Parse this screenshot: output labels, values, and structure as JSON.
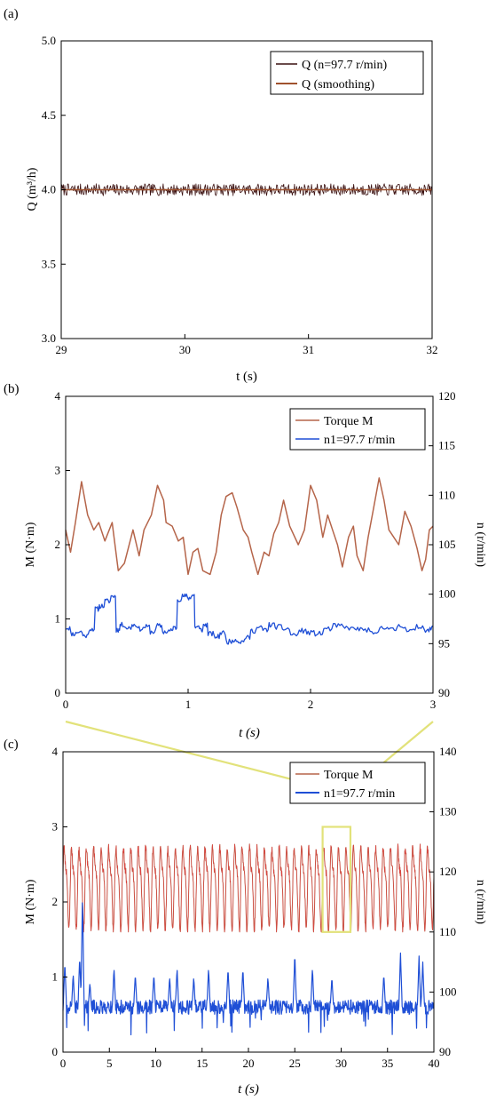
{
  "panels": {
    "a": {
      "label": "(a)"
    },
    "b": {
      "label": "(b)"
    },
    "c": {
      "label": "(c)"
    }
  },
  "chart_data": [
    {
      "id": "a",
      "type": "line",
      "xlabel": "t (s)",
      "ylabel": "Q (m³/h)",
      "xlim": [
        29,
        32
      ],
      "ylim": [
        3.0,
        5.0
      ],
      "xticks": [
        29,
        30,
        31,
        32
      ],
      "yticks": [
        3.0,
        3.5,
        4.0,
        4.5,
        5.0
      ],
      "grid": false,
      "legend_position": "top-right",
      "series": [
        {
          "name": "Q (n=97.7 r/min)",
          "color": "#3a1010",
          "mean": 4.0,
          "fluctuation": 0.04,
          "x": [
            29.0,
            29.5,
            30.0,
            30.5,
            31.0,
            31.5,
            32.0
          ],
          "values": [
            4.0,
            4.0,
            4.0,
            4.0,
            4.0,
            4.0,
            4.0
          ]
        },
        {
          "name": "Q (smoothing)",
          "color": "#a0522d",
          "x": [
            29.0,
            29.5,
            30.0,
            30.5,
            31.0,
            31.5,
            32.0
          ],
          "values": [
            4.0,
            4.0,
            4.0,
            4.0,
            4.0,
            4.0,
            4.0
          ]
        }
      ]
    },
    {
      "id": "b",
      "type": "line",
      "xlabel": "t (s)",
      "ylabel": "M (N·m)",
      "y2label": "n (r/min)",
      "xlim": [
        0,
        3
      ],
      "ylim": [
        0,
        4
      ],
      "y2lim": [
        90,
        120
      ],
      "xticks": [
        0,
        1,
        2,
        3
      ],
      "yticks": [
        0,
        1,
        2,
        3,
        4
      ],
      "y2ticks": [
        90,
        95,
        100,
        105,
        110,
        115,
        120
      ],
      "grid": false,
      "legend_position": "top-right",
      "series": [
        {
          "name": "Torque M",
          "color": "#b5654a",
          "axis": "left",
          "x": [
            0,
            0.04,
            0.08,
            0.13,
            0.18,
            0.23,
            0.27,
            0.32,
            0.38,
            0.43,
            0.48,
            0.55,
            0.6,
            0.64,
            0.7,
            0.75,
            0.8,
            0.82,
            0.87,
            0.92,
            0.96,
            1.0,
            1.04,
            1.08,
            1.12,
            1.18,
            1.23,
            1.27,
            1.31,
            1.36,
            1.4,
            1.45,
            1.49,
            1.52,
            1.57,
            1.62,
            1.66,
            1.7,
            1.74,
            1.78,
            1.83,
            1.9,
            1.95,
            2.0,
            2.05,
            2.1,
            2.14,
            2.18,
            2.22,
            2.26,
            2.31,
            2.35,
            2.38,
            2.43,
            2.47,
            2.51,
            2.56,
            2.6,
            2.64,
            2.68,
            2.72,
            2.77,
            2.82,
            2.87,
            2.91,
            2.94,
            2.97,
            3.0
          ],
          "values": [
            2.2,
            1.9,
            2.3,
            2.85,
            2.4,
            2.2,
            2.3,
            2.05,
            2.3,
            1.65,
            1.75,
            2.2,
            1.85,
            2.2,
            2.4,
            2.8,
            2.6,
            2.3,
            2.25,
            2.05,
            2.1,
            1.6,
            1.9,
            1.95,
            1.65,
            1.6,
            1.9,
            2.4,
            2.65,
            2.7,
            2.5,
            2.2,
            2.1,
            1.9,
            1.6,
            1.9,
            1.85,
            2.15,
            2.3,
            2.6,
            2.25,
            2.0,
            2.2,
            2.8,
            2.6,
            2.1,
            2.4,
            2.2,
            2.0,
            1.7,
            2.1,
            2.25,
            1.85,
            1.65,
            2.1,
            2.45,
            2.9,
            2.6,
            2.2,
            2.1,
            2.0,
            2.45,
            2.25,
            1.95,
            1.65,
            1.8,
            2.2,
            2.25
          ]
        },
        {
          "name": "n1=97.7 r/min",
          "color": "#1f4fd6",
          "axis": "right",
          "x": [
            0,
            0.05,
            0.1,
            0.15,
            0.2,
            0.25,
            0.28,
            0.33,
            0.38,
            0.42,
            0.45,
            0.5,
            0.55,
            0.6,
            0.65,
            0.7,
            0.75,
            0.8,
            0.85,
            0.88,
            0.92,
            0.96,
            1.0,
            1.03,
            1.06,
            1.1,
            1.13,
            1.17,
            1.22,
            1.27,
            1.32,
            1.37,
            1.42,
            1.47,
            1.52,
            1.57,
            1.62,
            1.67,
            1.72,
            1.78,
            1.85,
            1.92,
            1.98,
            2.05,
            2.12,
            2.2,
            2.28,
            2.35,
            2.42,
            2.5,
            2.58,
            2.65,
            2.72,
            2.8,
            2.88,
            2.95,
            3.0
          ],
          "values": [
            96.6,
            96.0,
            96.2,
            95.8,
            96.5,
            98.5,
            98.8,
            99.3,
            99.8,
            96.4,
            96.9,
            96.6,
            96.9,
            96.5,
            96.7,
            96.2,
            96.8,
            96.2,
            96.3,
            96.6,
            99.5,
            99.8,
            99.6,
            99.9,
            96.7,
            96.4,
            96.9,
            96.0,
            95.7,
            96.1,
            95.2,
            95.4,
            95.2,
            95.6,
            96.3,
            96.6,
            96.4,
            96.9,
            96.7,
            96.5,
            95.9,
            96.3,
            96.1,
            96.0,
            96.5,
            96.8,
            96.6,
            96.5,
            96.4,
            96.0,
            96.7,
            96.4,
            96.8,
            96.3,
            96.7,
            96.4,
            96.8
          ]
        }
      ]
    },
    {
      "id": "c",
      "type": "line",
      "xlabel": "t (s)",
      "ylabel": "M (N·m)",
      "y2label": "n (r/min)",
      "xlim": [
        0,
        40
      ],
      "ylim": [
        0,
        4
      ],
      "y2lim": [
        90,
        140
      ],
      "xticks": [
        0,
        5,
        10,
        15,
        20,
        25,
        30,
        35,
        40
      ],
      "yticks": [
        0,
        1,
        2,
        3,
        4
      ],
      "y2ticks": [
        90,
        100,
        110,
        120,
        130,
        140
      ],
      "grid": false,
      "legend_position": "top-right",
      "highlight_window": {
        "x": [
          28,
          31
        ],
        "y": [
          1.6,
          3.0
        ]
      },
      "series": [
        {
          "name": "Torque M",
          "color": "#b5654a",
          "axis": "left",
          "period": 0.8,
          "min": 1.6,
          "max": 2.9,
          "mean": 2.25,
          "x": [
            0,
            10,
            20,
            30,
            40
          ],
          "values": [
            2.25,
            2.25,
            2.25,
            2.25,
            2.25
          ]
        },
        {
          "name": "n1=97.7 r/min",
          "color": "#1f4fd6",
          "axis": "right",
          "mean": 97.5,
          "peaks_x": [
            0.2,
            1.1,
            1.8,
            2.1,
            2.9,
            5.5,
            7.8,
            9.8,
            11.5,
            12.3,
            14.1,
            15.7,
            17.8,
            19.4,
            22.1,
            25.0,
            26.9,
            29.0,
            34.6,
            36.4,
            38.4,
            38.8
          ],
          "peaks_y": [
            105,
            103,
            106,
            116,
            101.5,
            104,
            103,
            103,
            102.5,
            104,
            102.5,
            104,
            104,
            104,
            102.5,
            106.5,
            104,
            102.5,
            103,
            106.5,
            106,
            105
          ],
          "x": [
            0,
            10,
            20,
            30,
            40
          ],
          "values": [
            97.5,
            97.5,
            97.5,
            97.5,
            97.5
          ]
        }
      ]
    }
  ]
}
